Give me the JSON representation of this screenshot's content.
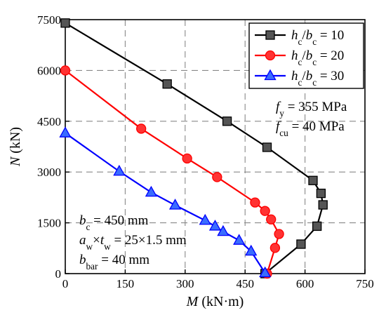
{
  "chart_data": {
    "type": "line",
    "xlabel": {
      "main": "M",
      "unit": "(kN·m)"
    },
    "ylabel": {
      "main": "N",
      "unit": "(kN)"
    },
    "xlim": [
      0,
      750
    ],
    "ylim": [
      0,
      7500
    ],
    "xticks": [
      0,
      150,
      300,
      450,
      600,
      750
    ],
    "yticks": [
      0,
      1500,
      3000,
      4500,
      6000,
      7500
    ],
    "grid": true,
    "legend_position": "top-right",
    "series": [
      {
        "name": "h_c/b_c = 10",
        "legend": {
          "h": "h",
          "hs": "c",
          "slash": "/",
          "b": "b",
          "bs": "c",
          "eq": " = 10"
        },
        "color": "#000000",
        "marker_fill": "#555555",
        "marker": "square",
        "points": [
          [
            0,
            7400
          ],
          [
            255,
            5600
          ],
          [
            405,
            4500
          ],
          [
            505,
            3730
          ],
          [
            620,
            2750
          ],
          [
            640,
            2370
          ],
          [
            645,
            2030
          ],
          [
            630,
            1400
          ],
          [
            590,
            870
          ],
          [
            500,
            0
          ]
        ]
      },
      {
        "name": "h_c/b_c = 20",
        "legend": {
          "h": "h",
          "hs": "c",
          "slash": "/",
          "b": "b",
          "bs": "c",
          "eq": " = 20"
        },
        "color": "#ff0000",
        "marker_fill": "#ff3333",
        "marker": "circle",
        "points": [
          [
            0,
            6000
          ],
          [
            190,
            4280
          ],
          [
            305,
            3400
          ],
          [
            380,
            2850
          ],
          [
            475,
            2100
          ],
          [
            500,
            1850
          ],
          [
            515,
            1600
          ],
          [
            535,
            1170
          ],
          [
            525,
            760
          ],
          [
            505,
            0
          ]
        ]
      },
      {
        "name": "h_c/b_c = 30",
        "legend": {
          "h": "h",
          "hs": "c",
          "slash": "/",
          "b": "b",
          "bs": "c",
          "eq": " = 30"
        },
        "color": "#0000ff",
        "marker_fill": "#3a6cff",
        "marker": "triangle",
        "points": [
          [
            0,
            4150
          ],
          [
            135,
            3020
          ],
          [
            215,
            2400
          ],
          [
            275,
            2020
          ],
          [
            350,
            1570
          ],
          [
            375,
            1400
          ],
          [
            395,
            1240
          ],
          [
            435,
            980
          ],
          [
            465,
            660
          ],
          [
            500,
            20
          ]
        ]
      }
    ],
    "annotations_right": [
      {
        "sym": "f",
        "sub": "y",
        "text": " = 355 MPa"
      },
      {
        "sym": "f",
        "sub": "cu",
        "text": " = 40 MPa"
      }
    ],
    "annotations_left": [
      {
        "parts": [
          {
            "t": "b",
            "i": true
          },
          {
            "t": "c",
            "s": true
          },
          {
            "t": " = 450 mm"
          }
        ]
      },
      {
        "parts": [
          {
            "t": "a",
            "i": true
          },
          {
            "t": "w",
            "s": true
          },
          {
            "t": "×"
          },
          {
            "t": "t",
            "i": true
          },
          {
            "t": "w",
            "s": true
          },
          {
            "t": " = 25×1.5 mm"
          }
        ]
      },
      {
        "parts": [
          {
            "t": "b",
            "i": true
          },
          {
            "t": "bar",
            "s": true
          },
          {
            "t": " = 40 mm"
          }
        ]
      }
    ],
    "colors": {
      "axis": "#000000",
      "grid": "#888888"
    }
  }
}
